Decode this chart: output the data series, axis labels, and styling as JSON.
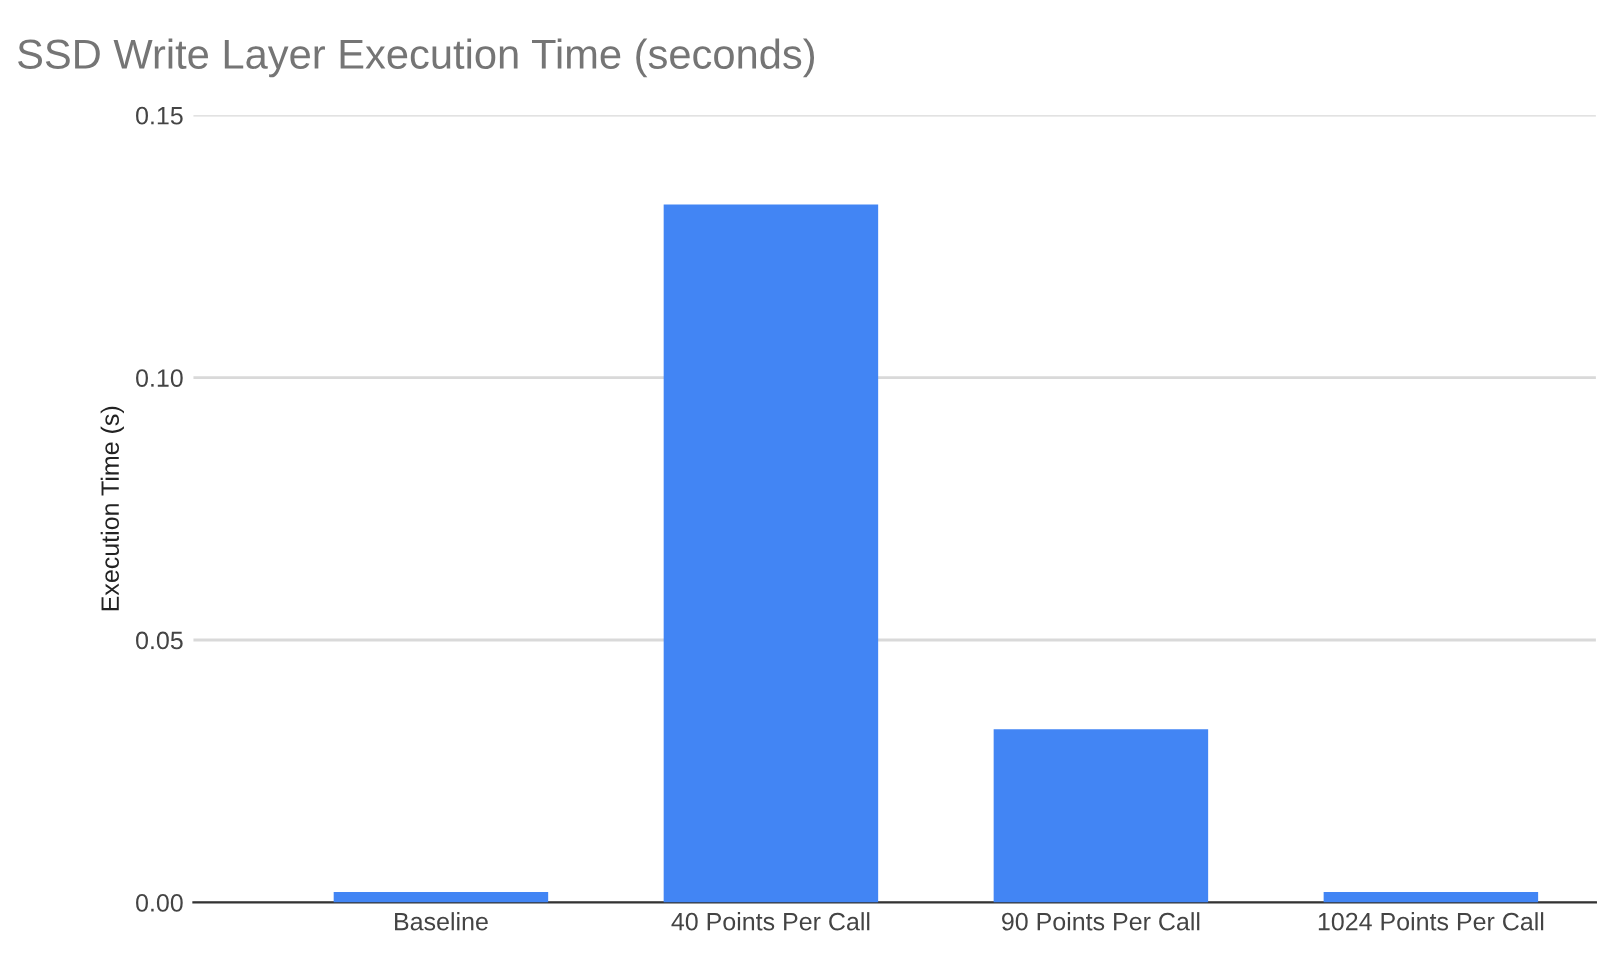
{
  "chart_data": {
    "type": "bar",
    "title": "SSD Write Layer Execution Time (seconds)",
    "ylabel": "Execution Time (s)",
    "categories": [
      "Baseline",
      "40 Points Per Call",
      "90 Points Per Call",
      "1024 Points Per Call"
    ],
    "values": [
      0.002,
      0.133,
      0.033,
      0.002
    ],
    "color": "#4285f4",
    "ylim": [
      0,
      0.15
    ],
    "yticks": [
      {
        "value": 0,
        "label": "0.00"
      },
      {
        "value": 0.05,
        "label": "0.05"
      },
      {
        "value": 0.1,
        "label": "0.10"
      },
      {
        "value": 0.15,
        "label": "0.15"
      }
    ],
    "grid": "y",
    "legend": false
  }
}
